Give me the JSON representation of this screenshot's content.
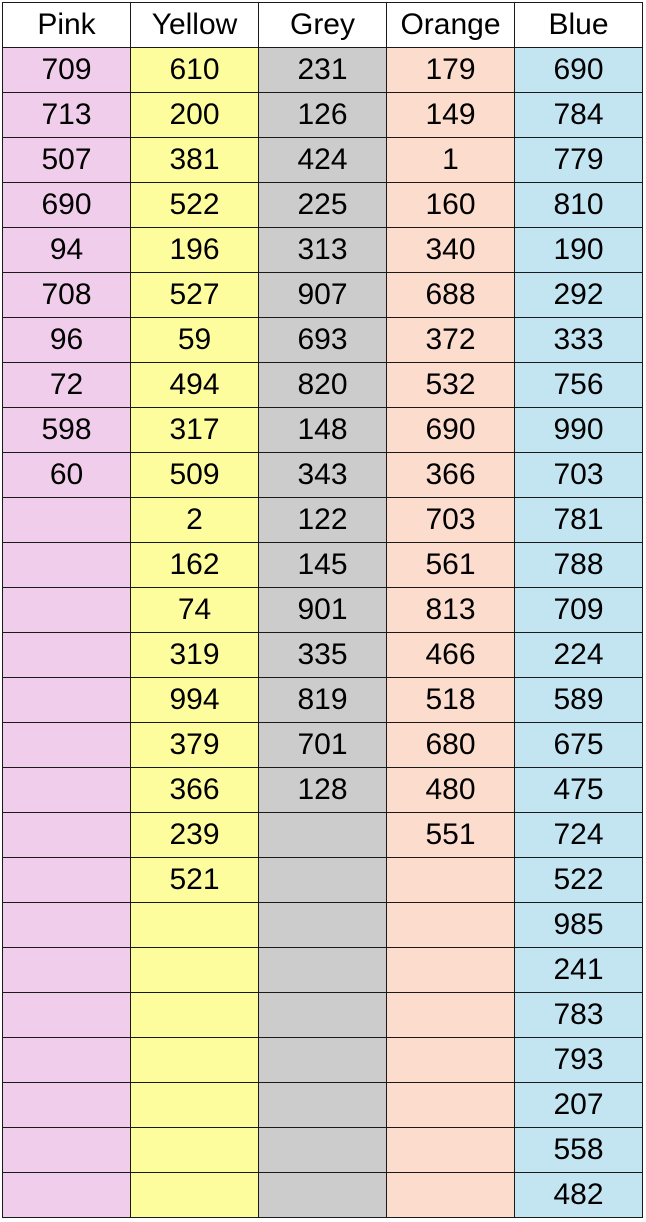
{
  "chart_data": {
    "type": "table",
    "columns": [
      {
        "name": "Pink",
        "color": "#f0cdea",
        "values": [
          "709",
          "713",
          "507",
          "690",
          "94",
          "708",
          "96",
          "72",
          "598",
          "60"
        ]
      },
      {
        "name": "Yellow",
        "color": "#fdfd9e",
        "values": [
          "610",
          "200",
          "381",
          "522",
          "196",
          "527",
          "59",
          "494",
          "317",
          "509",
          "2",
          "162",
          "74",
          "319",
          "994",
          "379",
          "366",
          "239",
          "521"
        ]
      },
      {
        "name": "Grey",
        "color": "#cccccc",
        "values": [
          "231",
          "126",
          "424",
          "225",
          "313",
          "907",
          "693",
          "820",
          "148",
          "343",
          "122",
          "145",
          "901",
          "335",
          "819",
          "701",
          "128"
        ]
      },
      {
        "name": "Orange",
        "color": "#fbdccd",
        "values": [
          "179",
          "149",
          "1",
          "160",
          "340",
          "688",
          "372",
          "532",
          "690",
          "366",
          "703",
          "561",
          "813",
          "466",
          "518",
          "680",
          "480",
          "551"
        ]
      },
      {
        "name": "Blue",
        "color": "#c3e5f2",
        "values": [
          "690",
          "784",
          "779",
          "810",
          "190",
          "292",
          "333",
          "756",
          "990",
          "703",
          "781",
          "788",
          "709",
          "224",
          "589",
          "675",
          "475",
          "724",
          "522",
          "985",
          "241",
          "783",
          "793",
          "207",
          "558",
          "482"
        ]
      }
    ],
    "row_count": 26
  }
}
